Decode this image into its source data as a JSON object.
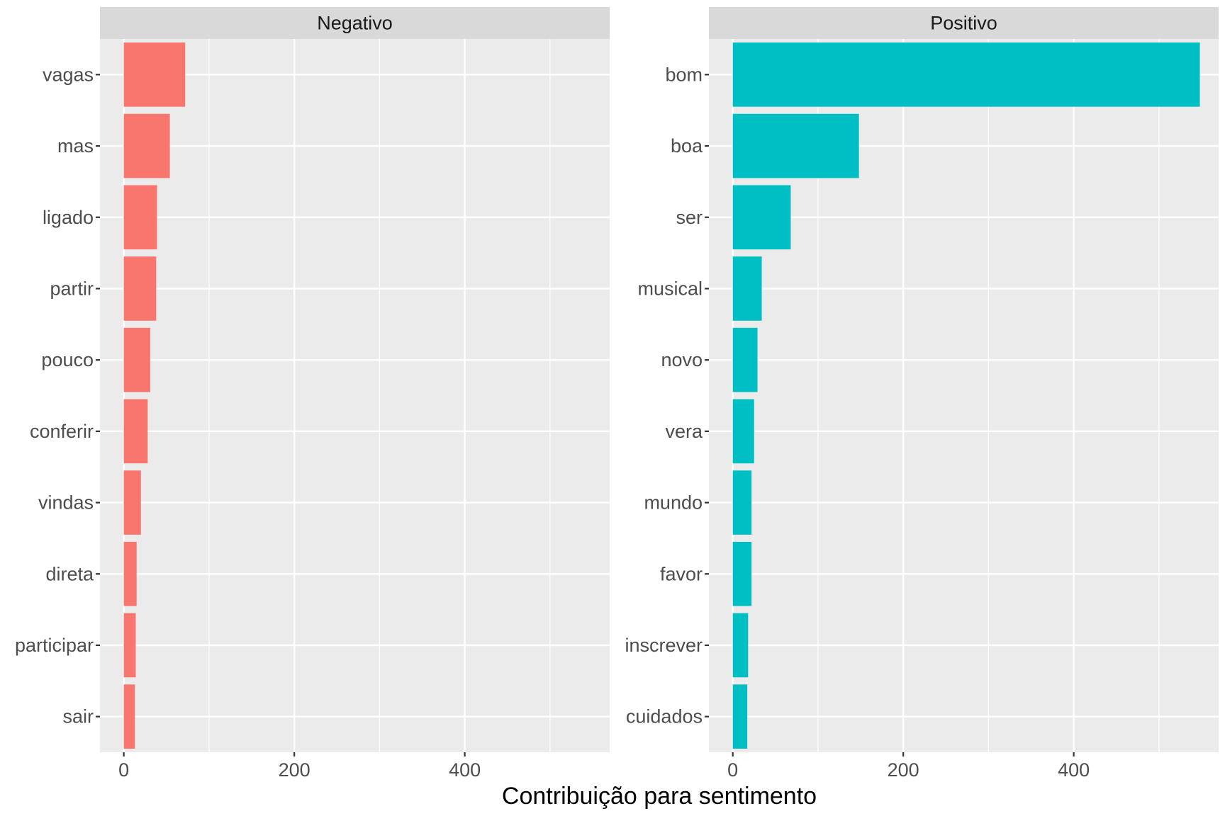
{
  "chart_data": {
    "type": "bar",
    "orientation": "horizontal",
    "facet": "columns",
    "xlabel": "Contribuição para sentimento",
    "ylabel": "",
    "xlim": [
      -28,
      570
    ],
    "x_ticks": [
      0,
      200,
      400
    ],
    "grid": true,
    "legend": "none",
    "panels": [
      {
        "name": "Negativo",
        "color": "#f8766d",
        "categories": [
          "vagas",
          "mas",
          "ligado",
          "partir",
          "pouco",
          "conferir",
          "vindas",
          "direta",
          "participar",
          "sair"
        ],
        "values": [
          72,
          54,
          39,
          38,
          31,
          28,
          20,
          15,
          14,
          13
        ]
      },
      {
        "name": "Positivo",
        "color": "#00bfc4",
        "categories": [
          "bom",
          "boa",
          "ser",
          "musical",
          "novo",
          "vera",
          "mundo",
          "favor",
          "inscrever",
          "cuidados"
        ],
        "values": [
          548,
          148,
          68,
          34,
          29,
          25,
          22,
          22,
          18,
          17
        ]
      }
    ]
  }
}
